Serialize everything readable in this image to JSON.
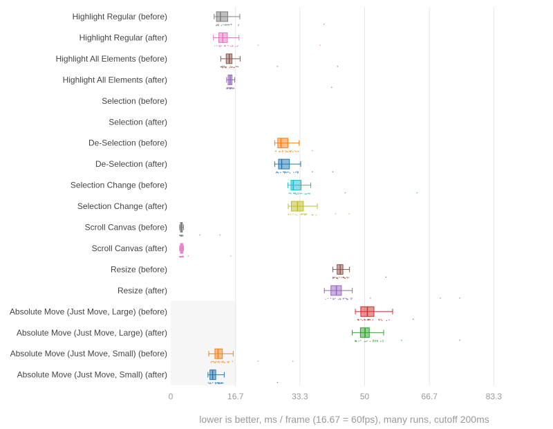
{
  "chart_data": {
    "type": "box",
    "orientation": "horizontal",
    "xlabel": "lower is better, ms / frame (16.67 = 60fps), many runs, cutoff 200ms",
    "xlim": [
      0,
      95
    ],
    "xticks": [
      0,
      16.7,
      33.3,
      50,
      66.7,
      83.3
    ],
    "xtick_labels": [
      "0",
      "16.7",
      "33.3",
      "50",
      "66.7",
      "83.3"
    ],
    "grid": true,
    "legend": "none",
    "reference_band": {
      "x0": 0,
      "x1": 16.67,
      "categories_from": 14,
      "categories_to": 17
    },
    "series": [
      {
        "name": "Highlight Regular (before)",
        "color": "#7f7f7f",
        "min": 11.2,
        "q1": 11.8,
        "median": 12.8,
        "q3": 14.7,
        "max": 17.8,
        "outliers": [
          39.5
        ]
      },
      {
        "name": "Highlight Regular (after)",
        "color": "#e377c2",
        "min": 11.0,
        "q1": 12.4,
        "median": 13.4,
        "q3": 14.6,
        "max": 17.6,
        "outliers": [
          22.5,
          38.5
        ]
      },
      {
        "name": "Highlight All Elements (before)",
        "color": "#8c564b",
        "min": 12.9,
        "q1": 14.3,
        "median": 15.1,
        "q3": 15.8,
        "max": 17.9,
        "outliers": [
          27.5,
          43.0
        ]
      },
      {
        "name": "Highlight All Elements (after)",
        "color": "#9467bd",
        "min": 14.4,
        "q1": 14.8,
        "median": 15.3,
        "q3": 15.8,
        "max": 16.5,
        "outliers": [
          41.5
        ]
      },
      {
        "name": "Selection (before)",
        "color": "#1f77b4",
        "min": null,
        "q1": null,
        "median": null,
        "q3": null,
        "max": null,
        "outliers": []
      },
      {
        "name": "Selection (after)",
        "color": "#1f77b4",
        "min": null,
        "q1": null,
        "median": null,
        "q3": null,
        "max": null,
        "outliers": []
      },
      {
        "name": "De-Selection (before)",
        "color": "#ff7f0e",
        "min": 26.8,
        "q1": 27.6,
        "median": 28.4,
        "q3": 30.2,
        "max": 33.1,
        "outliers": [
          36.5
        ]
      },
      {
        "name": "De-Selection (after)",
        "color": "#1f77b4",
        "min": 26.8,
        "q1": 27.8,
        "median": 28.6,
        "q3": 30.6,
        "max": 33.5,
        "outliers": [
          36.5,
          41.8
        ]
      },
      {
        "name": "Selection Change (before)",
        "color": "#17becf",
        "min": 30.2,
        "q1": 31.0,
        "median": 31.6,
        "q3": 33.6,
        "max": 36.1,
        "outliers": [
          45.0,
          63.5
        ]
      },
      {
        "name": "Selection Change (after)",
        "color": "#bcbd22",
        "min": 30.3,
        "q1": 31.1,
        "median": 32.7,
        "q3": 34.2,
        "max": 37.8,
        "outliers": [
          42.5,
          46.0
        ]
      },
      {
        "name": "Scroll Canvas (before)",
        "color": "#7f7f7f",
        "min": 2.3,
        "q1": 2.5,
        "median": 2.8,
        "q3": 3.0,
        "max": 3.3,
        "outliers": [
          7.5,
          12.7
        ]
      },
      {
        "name": "Scroll Canvas (after)",
        "color": "#e377c2",
        "min": 2.3,
        "q1": 2.5,
        "median": 2.8,
        "q3": 3.1,
        "max": 3.3,
        "outliers": [
          4.5,
          15.5
        ]
      },
      {
        "name": "Resize (before)",
        "color": "#8c564b",
        "min": 41.8,
        "q1": 42.9,
        "median": 43.7,
        "q3": 44.4,
        "max": 46.1,
        "outliers": [
          55.5
        ]
      },
      {
        "name": "Resize (after)",
        "color": "#9467bd",
        "min": 39.6,
        "q1": 41.3,
        "median": 42.7,
        "q3": 44.0,
        "max": 46.8,
        "outliers": [
          51.5,
          69.5,
          74.5
        ]
      },
      {
        "name": "Absolute Move (Just Move, Large) (before)",
        "color": "#d62728",
        "min": 47.6,
        "q1": 49.0,
        "median": 50.7,
        "q3": 52.4,
        "max": 57.2,
        "outliers": [
          62.5
        ]
      },
      {
        "name": "Absolute Move (Just Move, Large) (after)",
        "color": "#2ca02c",
        "min": 46.8,
        "q1": 48.9,
        "median": 50.1,
        "q3": 51.2,
        "max": 54.9,
        "outliers": [
          59.5,
          74.5
        ]
      },
      {
        "name": "Absolute Move (Just Move, Small) (before)",
        "color": "#ff7f0e",
        "min": 9.8,
        "q1": 11.4,
        "median": 12.2,
        "q3": 13.3,
        "max": 16.1,
        "outliers": [
          22.5,
          31.5
        ]
      },
      {
        "name": "Absolute Move (Just Move, Small) (after)",
        "color": "#1f77b4",
        "min": 9.6,
        "q1": 10.1,
        "median": 10.8,
        "q3": 11.6,
        "max": 13.8,
        "outliers": [
          27.5
        ]
      }
    ]
  }
}
